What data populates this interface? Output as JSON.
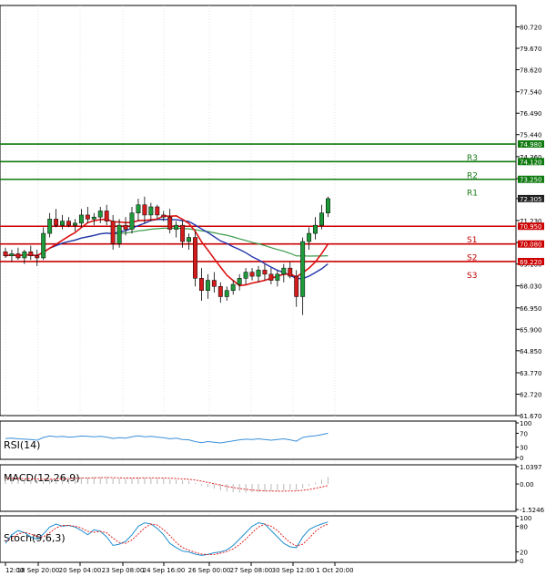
{
  "chart_data": {
    "type": "candlestick",
    "main": {
      "ylim": [
        61.67,
        81.77
      ],
      "yticks": [
        "80.720",
        "79.670",
        "78.620",
        "77.540",
        "76.490",
        "75.440",
        "74.360",
        "73.280",
        "72.305",
        "71.230",
        "70.150",
        "69.100",
        "68.030",
        "66.950",
        "65.900",
        "64.850",
        "63.770",
        "62.720",
        "61.670"
      ],
      "xticks": [
        "12:00",
        "18 Sep 20:00",
        "20 Sep 04:00",
        "23 Sep 08:00",
        "24 Sep 16:00",
        "26 Sep 00:00",
        "27 Sep 08:00",
        "30 Sep 12:00",
        "1 Oct 20:00"
      ],
      "levels": [
        {
          "name": "R3",
          "value": 74.98,
          "label": "74.980",
          "kind": "resistance"
        },
        {
          "name": "R2",
          "value": 74.12,
          "label": "74.120",
          "kind": "resistance"
        },
        {
          "name": "R1",
          "value": 73.25,
          "label": "73.250",
          "kind": "resistance"
        },
        {
          "name": "S1",
          "value": 70.95,
          "label": "70.950",
          "kind": "support"
        },
        {
          "name": "S2",
          "value": 70.08,
          "label": "70.080",
          "kind": "support"
        },
        {
          "name": "S3",
          "value": 69.22,
          "label": "69.220",
          "kind": "support"
        }
      ],
      "current_price": {
        "value": 72.305,
        "label": "72.305"
      },
      "candles": [
        [
          69.7,
          69.9,
          69.4,
          69.5
        ],
        [
          69.5,
          69.8,
          69.2,
          69.6
        ],
        [
          69.6,
          69.9,
          69.3,
          69.4
        ],
        [
          69.4,
          69.8,
          69.1,
          69.7
        ],
        [
          69.7,
          70.0,
          69.3,
          69.5
        ],
        [
          69.5,
          69.8,
          69.0,
          69.4
        ],
        [
          69.4,
          70.9,
          69.3,
          70.6
        ],
        [
          70.6,
          71.6,
          70.4,
          71.3
        ],
        [
          71.3,
          71.8,
          70.9,
          71.0
        ],
        [
          71.0,
          71.5,
          70.8,
          71.2
        ],
        [
          71.2,
          71.4,
          70.9,
          71.0
        ],
        [
          71.0,
          71.3,
          70.7,
          71.1
        ],
        [
          71.1,
          71.8,
          70.9,
          71.5
        ],
        [
          71.5,
          71.9,
          71.1,
          71.3
        ],
        [
          71.3,
          71.6,
          71.0,
          71.4
        ],
        [
          71.4,
          71.9,
          71.1,
          71.7
        ],
        [
          71.7,
          72.0,
          71.0,
          71.2
        ],
        [
          71.2,
          71.5,
          69.8,
          70.1
        ],
        [
          70.1,
          71.3,
          69.9,
          71.0
        ],
        [
          71.0,
          71.4,
          70.5,
          70.8
        ],
        [
          70.8,
          71.9,
          70.6,
          71.6
        ],
        [
          71.6,
          72.3,
          71.2,
          72.0
        ],
        [
          72.0,
          72.4,
          71.1,
          71.5
        ],
        [
          71.5,
          72.1,
          71.2,
          71.9
        ],
        [
          71.9,
          72.0,
          71.3,
          71.5
        ],
        [
          71.5,
          71.7,
          71.2,
          71.4
        ],
        [
          71.4,
          71.8,
          70.6,
          70.8
        ],
        [
          70.8,
          71.2,
          70.4,
          71.0
        ],
        [
          71.0,
          71.2,
          69.9,
          70.2
        ],
        [
          70.2,
          70.6,
          69.8,
          70.4
        ],
        [
          70.4,
          70.7,
          68.0,
          68.4
        ],
        [
          68.4,
          68.9,
          67.3,
          67.8
        ],
        [
          67.8,
          68.6,
          67.4,
          68.3
        ],
        [
          68.3,
          68.7,
          67.7,
          68.0
        ],
        [
          68.0,
          68.2,
          67.2,
          67.5
        ],
        [
          67.5,
          68.0,
          67.3,
          67.8
        ],
        [
          67.8,
          68.3,
          67.6,
          68.1
        ],
        [
          68.1,
          68.6,
          67.8,
          68.4
        ],
        [
          68.4,
          68.9,
          68.1,
          68.7
        ],
        [
          68.7,
          68.9,
          68.3,
          68.5
        ],
        [
          68.5,
          69.0,
          68.2,
          68.8
        ],
        [
          68.8,
          69.1,
          68.3,
          68.6
        ],
        [
          68.6,
          68.9,
          68.1,
          68.3
        ],
        [
          68.3,
          68.8,
          68.0,
          68.6
        ],
        [
          68.6,
          69.1,
          68.2,
          68.9
        ],
        [
          68.9,
          69.2,
          68.4,
          68.5
        ],
        [
          68.5,
          68.8,
          67.0,
          67.5
        ],
        [
          67.5,
          70.4,
          66.6,
          70.2
        ],
        [
          70.2,
          70.9,
          69.8,
          70.6
        ],
        [
          70.6,
          71.4,
          70.3,
          71.0
        ],
        [
          71.0,
          72.0,
          70.8,
          71.6
        ],
        [
          71.6,
          72.4,
          71.4,
          72.305
        ]
      ]
    },
    "rsi": {
      "title": "RSI(14)",
      "yticks": [
        "100",
        "70",
        "30",
        "0"
      ],
      "ylim": [
        0,
        100
      ],
      "values": [
        55,
        56,
        54,
        53,
        52,
        50,
        58,
        62,
        60,
        61,
        59,
        60,
        62,
        61,
        60,
        61,
        59,
        55,
        57,
        56,
        60,
        63,
        60,
        61,
        59,
        57,
        54,
        56,
        52,
        51,
        46,
        43,
        46,
        44,
        42,
        45,
        48,
        51,
        53,
        52,
        54,
        52,
        50,
        52,
        54,
        51,
        47,
        58,
        61,
        63,
        66,
        70
      ]
    },
    "macd": {
      "title": "MACD(12,26,9)",
      "yticks": [
        "1.0397",
        "0.00",
        "-1.5246"
      ],
      "ylim": [
        -1.5246,
        1.0397
      ],
      "hist": [
        0.35,
        0.32,
        0.3,
        0.28,
        0.26,
        0.24,
        0.25,
        0.3,
        0.34,
        0.36,
        0.38,
        0.39,
        0.4,
        0.41,
        0.42,
        0.42,
        0.41,
        0.36,
        0.34,
        0.33,
        0.35,
        0.38,
        0.38,
        0.38,
        0.37,
        0.34,
        0.3,
        0.27,
        0.22,
        0.18,
        0.06,
        -0.08,
        -0.18,
        -0.28,
        -0.38,
        -0.45,
        -0.5,
        -0.52,
        -0.52,
        -0.5,
        -0.48,
        -0.46,
        -0.44,
        -0.42,
        -0.38,
        -0.36,
        -0.38,
        -0.25,
        -0.1,
        0.08,
        0.25,
        0.42
      ],
      "signal": [
        0.34,
        0.34,
        0.33,
        0.32,
        0.31,
        0.3,
        0.29,
        0.29,
        0.3,
        0.31,
        0.32,
        0.34,
        0.35,
        0.36,
        0.37,
        0.38,
        0.39,
        0.38,
        0.37,
        0.36,
        0.36,
        0.36,
        0.37,
        0.37,
        0.37,
        0.36,
        0.35,
        0.33,
        0.31,
        0.28,
        0.24,
        0.17,
        0.09,
        0.02,
        -0.06,
        -0.14,
        -0.21,
        -0.27,
        -0.32,
        -0.36,
        -0.39,
        -0.41,
        -0.42,
        -0.43,
        -0.43,
        -0.42,
        -0.41,
        -0.38,
        -0.33,
        -0.26,
        -0.18,
        -0.09
      ]
    },
    "stoch": {
      "title": "Stoch(9,6,3)",
      "yticks": [
        "100",
        "80",
        "20",
        "0"
      ],
      "ylim": [
        0,
        100
      ],
      "k": [
        40,
        60,
        70,
        65,
        55,
        50,
        62,
        78,
        85,
        80,
        82,
        78,
        70,
        60,
        72,
        68,
        55,
        35,
        38,
        45,
        60,
        80,
        88,
        85,
        75,
        60,
        40,
        30,
        22,
        20,
        15,
        12,
        14,
        18,
        20,
        25,
        35,
        50,
        65,
        80,
        88,
        85,
        70,
        55,
        40,
        32,
        30,
        55,
        72,
        80,
        85,
        90
      ],
      "d": [
        45,
        52,
        62,
        66,
        62,
        56,
        55,
        65,
        76,
        82,
        82,
        80,
        76,
        68,
        66,
        68,
        65,
        52,
        42,
        40,
        48,
        62,
        76,
        85,
        83,
        72,
        58,
        42,
        30,
        24,
        19,
        15,
        14,
        14,
        17,
        21,
        27,
        37,
        50,
        65,
        78,
        85,
        80,
        70,
        55,
        42,
        34,
        38,
        52,
        68,
        79,
        85
      ]
    }
  }
}
